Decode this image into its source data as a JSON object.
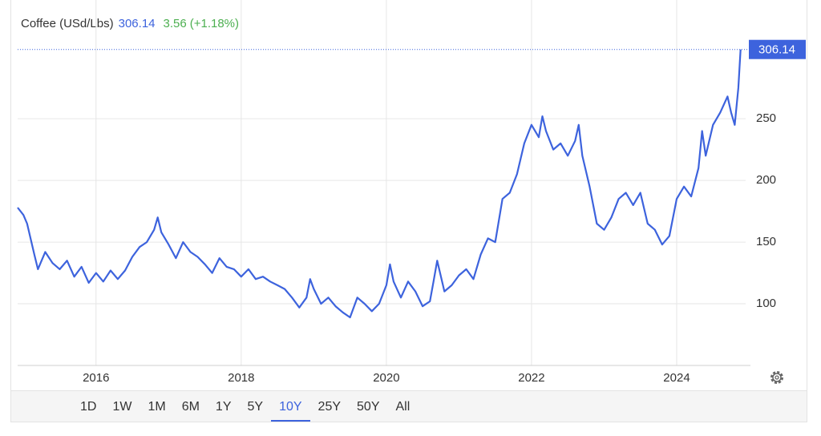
{
  "chart_data": {
    "type": "line",
    "title": "Coffee (USd/Lbs)",
    "change": "3.56",
    "change_pct": "(+1.18%)",
    "color": "#3d63dd",
    "change_color": "#4caf50",
    "grid": true,
    "x": [
      2014.92,
      2015.0,
      2015.05,
      2015.15,
      2015.2,
      2015.3,
      2015.4,
      2015.5,
      2015.6,
      2015.7,
      2015.8,
      2015.9,
      2016.0,
      2016.1,
      2016.2,
      2016.3,
      2016.4,
      2016.5,
      2016.6,
      2016.7,
      2016.8,
      2016.85,
      2016.9,
      2017.0,
      2017.1,
      2017.2,
      2017.3,
      2017.4,
      2017.5,
      2017.6,
      2017.7,
      2017.8,
      2017.9,
      2018.0,
      2018.1,
      2018.2,
      2018.3,
      2018.4,
      2018.5,
      2018.6,
      2018.7,
      2018.8,
      2018.9,
      2018.95,
      2019.0,
      2019.1,
      2019.2,
      2019.3,
      2019.4,
      2019.5,
      2019.6,
      2019.7,
      2019.8,
      2019.9,
      2020.0,
      2020.05,
      2020.1,
      2020.2,
      2020.3,
      2020.4,
      2020.5,
      2020.6,
      2020.65,
      2020.7,
      2020.8,
      2020.9,
      2021.0,
      2021.1,
      2021.2,
      2021.3,
      2021.4,
      2021.5,
      2021.6,
      2021.7,
      2021.8,
      2021.9,
      2022.0,
      2022.1,
      2022.15,
      2022.2,
      2022.3,
      2022.4,
      2022.5,
      2022.6,
      2022.65,
      2022.7,
      2022.8,
      2022.9,
      2023.0,
      2023.1,
      2023.2,
      2023.3,
      2023.4,
      2023.5,
      2023.6,
      2023.7,
      2023.8,
      2023.9,
      2024.0,
      2024.1,
      2024.2,
      2024.3,
      2024.35,
      2024.4,
      2024.5,
      2024.6,
      2024.7,
      2024.75,
      2024.8,
      2024.85,
      2024.88
    ],
    "series": [
      {
        "name": "Coffee",
        "values": [
          178,
          172,
          165,
          140,
          128,
          142,
          133,
          128,
          135,
          122,
          130,
          117,
          125,
          118,
          127,
          120,
          127,
          138,
          146,
          150,
          160,
          170,
          158,
          148,
          137,
          150,
          142,
          138,
          132,
          125,
          137,
          130,
          128,
          122,
          128,
          120,
          122,
          118,
          115,
          112,
          105,
          97,
          105,
          120,
          112,
          100,
          105,
          98,
          93,
          89,
          105,
          100,
          94,
          100,
          115,
          132,
          118,
          105,
          118,
          110,
          98,
          102,
          118,
          135,
          110,
          115,
          123,
          128,
          120,
          140,
          153,
          150,
          185,
          190,
          205,
          230,
          245,
          235,
          252,
          240,
          225,
          230,
          220,
          232,
          245,
          220,
          195,
          165,
          160,
          170,
          185,
          190,
          180,
          190,
          165,
          160,
          148,
          155,
          185,
          195,
          187,
          210,
          240,
          220,
          245,
          255,
          268,
          255,
          245,
          275,
          306.14
        ]
      }
    ],
    "xlim": [
      2014.92,
      2024.95
    ],
    "xticks": [
      2016,
      2018,
      2020,
      2022,
      2024
    ],
    "ylim": [
      50,
      317
    ],
    "yticks": [
      100,
      150,
      200,
      250
    ],
    "ranges": [
      "1D",
      "1W",
      "1M",
      "6M",
      "1Y",
      "5Y",
      "10Y",
      "25Y",
      "50Y",
      "All"
    ],
    "selected_range": "10Y"
  }
}
